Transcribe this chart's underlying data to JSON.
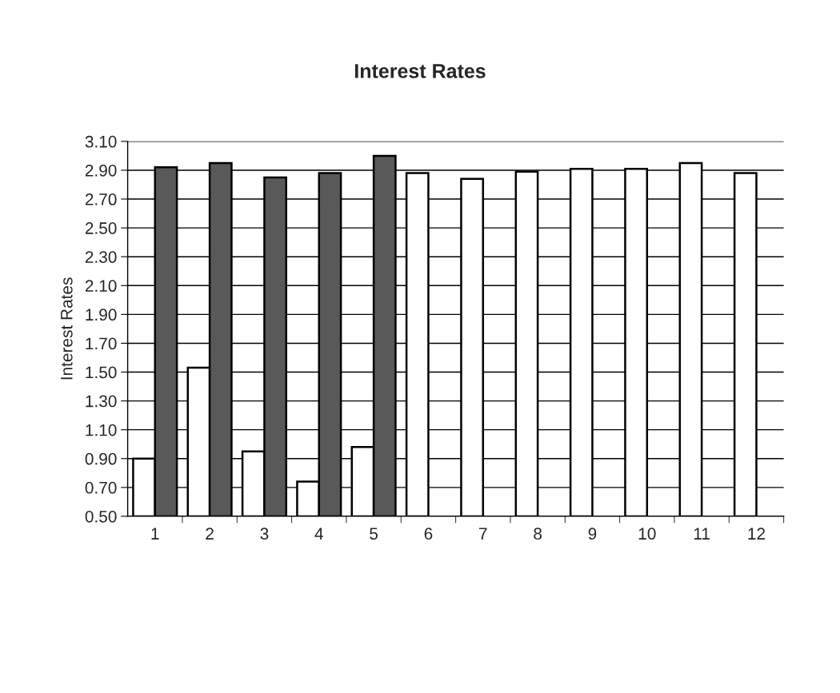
{
  "chart_data": {
    "type": "bar",
    "title": "Interest Rates",
    "ylabel": "Interest Rates",
    "categories": [
      "1",
      "2",
      "3",
      "4",
      "5",
      "6",
      "7",
      "8",
      "9",
      "10",
      "11",
      "12"
    ],
    "series": [
      {
        "color": "#ffffff",
        "values": [
          0.9,
          1.53,
          0.95,
          0.74,
          0.98,
          2.88,
          2.84,
          2.89,
          2.91,
          2.91,
          2.95,
          2.88
        ]
      },
      {
        "color": "#595959",
        "values": [
          2.92,
          2.95,
          2.85,
          2.88,
          3.0,
          null,
          null,
          null,
          null,
          null,
          null,
          null
        ]
      }
    ],
    "ylim": [
      0.5,
      3.1
    ],
    "yticks": [
      {
        "value": 0.5,
        "label": "0.50"
      },
      {
        "value": 0.7,
        "label": "0.70"
      },
      {
        "value": 0.9,
        "label": "0.90"
      },
      {
        "value": 1.1,
        "label": "1.10"
      },
      {
        "value": 1.3,
        "label": "1.30"
      },
      {
        "value": 1.5,
        "label": "1.50"
      },
      {
        "value": 1.7,
        "label": "1.70"
      },
      {
        "value": 1.9,
        "label": "1.90"
      },
      {
        "value": 2.1,
        "label": "2.10"
      },
      {
        "value": 2.3,
        "label": "2.30"
      },
      {
        "value": 2.5,
        "label": "2.50"
      },
      {
        "value": 2.7,
        "label": "2.70"
      },
      {
        "value": 2.9,
        "label": "2.90"
      },
      {
        "value": 3.1,
        "label": "3.10"
      }
    ],
    "grid": "y"
  }
}
